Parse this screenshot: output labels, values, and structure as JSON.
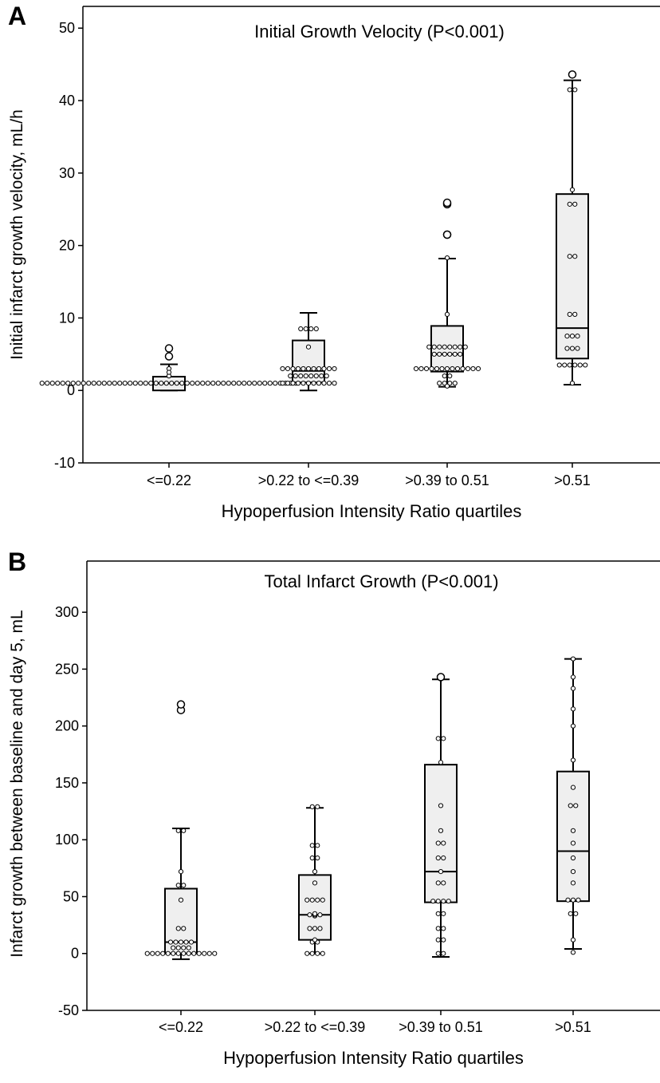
{
  "chart_data": [
    {
      "panel_label": "A",
      "type": "box",
      "title": "Initial Growth Velocity (P<0.001)",
      "xlabel": "Hypoperfusion Intensity Ratio quartiles",
      "ylabel": "Initial infarct growth velocity, mL/h",
      "ylim": [
        -10,
        53
      ],
      "yticks": [
        -10,
        0,
        10,
        20,
        30,
        40,
        50
      ],
      "categories": [
        "<=0.22",
        ">0.22 to <=0.39",
        ">0.39 to 0.51",
        ">0.51"
      ],
      "boxes": [
        {
          "whisker_low": 0,
          "q1": 0,
          "median": 1,
          "q3": 1.9,
          "whisker_high": 3.6,
          "outliers": [
            4.7,
            5.8
          ],
          "points": [
            1,
            1,
            1,
            1,
            1,
            1,
            1,
            1,
            1,
            1,
            1,
            1,
            1,
            1,
            1,
            1,
            1,
            1,
            1,
            1,
            1,
            1,
            1,
            1,
            1,
            1,
            1,
            1,
            1,
            1,
            1,
            1,
            1,
            1,
            1,
            1,
            1,
            1,
            1,
            1,
            1,
            1,
            1,
            1,
            1,
            1,
            1,
            1,
            1,
            1,
            2,
            2.5,
            3
          ]
        },
        {
          "whisker_low": 0,
          "q1": 1.1,
          "median": 2.7,
          "q3": 6.9,
          "whisker_high": 10.7,
          "outliers": [],
          "points": [
            1,
            1,
            1,
            1,
            1,
            1,
            1,
            1,
            1,
            1,
            1,
            2,
            2,
            2,
            2,
            2,
            2,
            2,
            2,
            3,
            3,
            3,
            3,
            3,
            3,
            3,
            3,
            3,
            3,
            3,
            6,
            8.5,
            8.5,
            8.5,
            8.5
          ]
        },
        {
          "whisker_low": 0.5,
          "q1": 2.6,
          "median": 5,
          "q3": 8.9,
          "whisker_high": 18.2,
          "outliers": [
            21.5,
            21.5,
            25.7,
            25.9
          ],
          "points": [
            0.6,
            1,
            1,
            1,
            1,
            2,
            2,
            3,
            3,
            3,
            3,
            3,
            3,
            3,
            3,
            3,
            3,
            3,
            3,
            3,
            5,
            5,
            5,
            5,
            5,
            5,
            6,
            6,
            6,
            6,
            6,
            6,
            6,
            6,
            10.5,
            18.3
          ]
        },
        {
          "whisker_low": 0.8,
          "q1": 4.4,
          "median": 8.6,
          "q3": 27.1,
          "whisker_high": 42.8,
          "outliers": [
            43.6
          ],
          "points": [
            1,
            3.5,
            3.5,
            3.5,
            3.5,
            3.5,
            3.5,
            5.8,
            5.8,
            5.8,
            7.5,
            7.5,
            7.5,
            10.5,
            10.5,
            18.5,
            18.5,
            25.7,
            25.7,
            27.7,
            41.5,
            41.5
          ]
        }
      ]
    },
    {
      "panel_label": "B",
      "type": "box",
      "title": "Total Infarct Growth (P<0.001)",
      "xlabel": "Hypoperfusion Intensity Ratio quartiles",
      "ylabel": "Infarct growth between baseline and day 5, mL",
      "ylim": [
        -50,
        345
      ],
      "yticks": [
        -50,
        0,
        50,
        100,
        150,
        200,
        250,
        300
      ],
      "categories": [
        "<=0.22",
        ">0.22 to <=0.39",
        ">0.39 to 0.51",
        ">0.51"
      ],
      "boxes": [
        {
          "whisker_low": -5,
          "q1": 0,
          "median": 10,
          "q3": 57,
          "whisker_high": 110,
          "outliers": [
            214,
            219
          ],
          "points": [
            0,
            0,
            0,
            0,
            0,
            0,
            0,
            0,
            0,
            0,
            0,
            0,
            0,
            0,
            5,
            5,
            5,
            5,
            10,
            10,
            10,
            10,
            10,
            22,
            22,
            47,
            60,
            60,
            72,
            108,
            108
          ]
        },
        {
          "whisker_low": 0,
          "q1": 12,
          "median": 34,
          "q3": 69,
          "whisker_high": 128,
          "outliers": [],
          "points": [
            0,
            0,
            0,
            0,
            10,
            10,
            12,
            22,
            22,
            22,
            33,
            34,
            34,
            34,
            35,
            47,
            47,
            47,
            47,
            62,
            72,
            84,
            84,
            95,
            95,
            129,
            129
          ]
        },
        {
          "whisker_low": -3,
          "q1": 45,
          "median": 72,
          "q3": 166,
          "whisker_high": 241,
          "outliers": [
            243
          ],
          "points": [
            0,
            0,
            12,
            12,
            22,
            22,
            35,
            35,
            46,
            46,
            46,
            46,
            62,
            62,
            72,
            84,
            84,
            97,
            97,
            108,
            130,
            168,
            189,
            189
          ]
        },
        {
          "whisker_low": 4,
          "q1": 46,
          "median": 90,
          "q3": 160,
          "whisker_high": 259,
          "outliers": [],
          "points": [
            1,
            12,
            35,
            35,
            47,
            47,
            47,
            62,
            72,
            84,
            97,
            108,
            130,
            130,
            146,
            170,
            200,
            215,
            233,
            243,
            259
          ]
        }
      ]
    }
  ]
}
